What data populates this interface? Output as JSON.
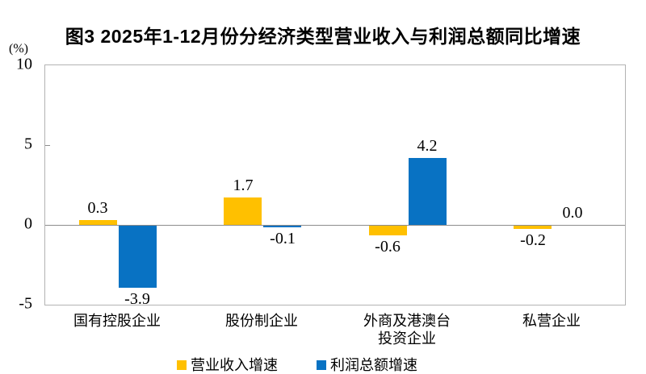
{
  "title": "图3 2025年1-12月份分经济类型营业收入与利润总额同比增速",
  "chart_data": {
    "type": "bar",
    "title": "图3 2025年1-12月份分经济类型营业收入与利润总额同比增速",
    "categories": [
      "国有控股企业",
      "股份制企业",
      "外商及港澳台\n投资企业",
      "私营企业"
    ],
    "series": [
      {
        "name": "营业收入增速",
        "color": "#FFC000",
        "values": [
          0.3,
          1.7,
          -0.6,
          -0.2
        ]
      },
      {
        "name": "利润总额增速",
        "color": "#0872C3",
        "values": [
          -3.9,
          -0.1,
          4.2,
          0.0
        ]
      }
    ],
    "xlabel": "",
    "ylabel": "(%)",
    "ylim": [
      -5,
      10
    ],
    "yticks": [
      10,
      5,
      0,
      -5
    ],
    "grid": false,
    "legend_position": "bottom",
    "value_labels": true
  },
  "colors": {
    "revenue_bar": "#FFC000",
    "profit_bar": "#0872C3",
    "plot_border": "#b3b3b3",
    "zero_line": "#8c8c8c",
    "text": "#000000",
    "background": "#ffffff"
  }
}
